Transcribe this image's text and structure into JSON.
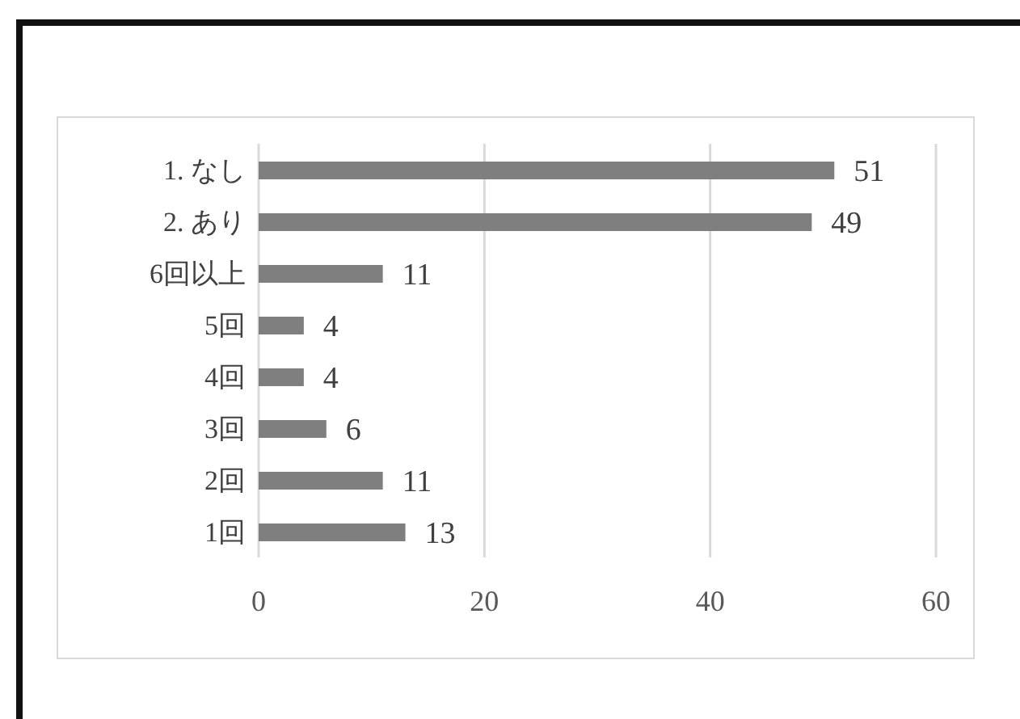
{
  "chart_data": {
    "type": "bar",
    "orientation": "horizontal",
    "categories": [
      "1. なし",
      "2. あり",
      "6回以上",
      "5回",
      "4回",
      "3回",
      "2回",
      "1回"
    ],
    "values": [
      51,
      49,
      11,
      4,
      4,
      6,
      11,
      13
    ],
    "color": "#7f7f7f",
    "xlim": [
      0,
      60
    ],
    "xticks": [
      0,
      20,
      40,
      60
    ],
    "grid": "x",
    "data_labels": true,
    "legend": false
  }
}
